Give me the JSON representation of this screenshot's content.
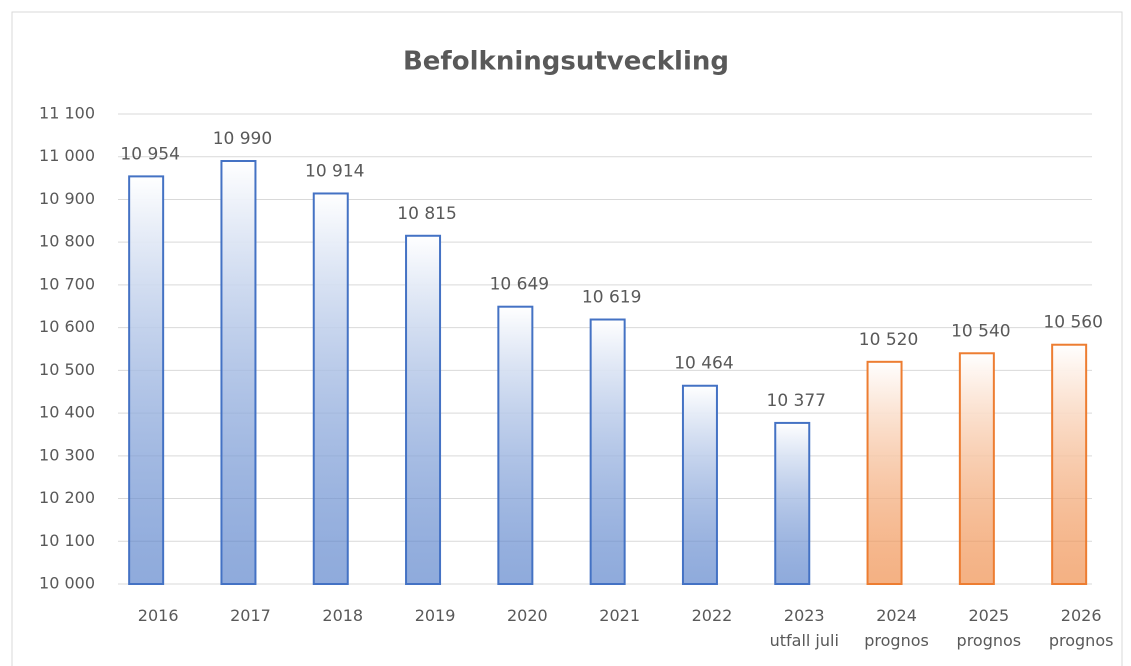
{
  "chart_data": {
    "type": "bar",
    "title": "Befolkningsutveckling",
    "categories": [
      "2016",
      "2017",
      "2018",
      "2019",
      "2020",
      "2021",
      "2022",
      "2023\nutfall juli",
      "2024\nprognos",
      "2025\nprognos",
      "2026\nprognos"
    ],
    "values": [
      10954,
      10990,
      10914,
      10815,
      10649,
      10619,
      10464,
      10377,
      10520,
      10540,
      10560
    ],
    "value_labels": [
      "10 954",
      "10 990",
      "10 914",
      "10 815",
      "10 649",
      "10 619",
      "10 464",
      "10 377",
      "10 520",
      "10 540",
      "10 560"
    ],
    "colors": [
      "#4472c4",
      "#4472c4",
      "#4472c4",
      "#4472c4",
      "#4472c4",
      "#4472c4",
      "#4472c4",
      "#4472c4",
      "#ed7d31",
      "#ed7d31",
      "#ed7d31"
    ],
    "ylim": [
      10000,
      11100
    ],
    "yticks": [
      {
        "value": 10000,
        "label": "10 000"
      },
      {
        "value": 10100,
        "label": "10 100"
      },
      {
        "value": 10200,
        "label": "10 200"
      },
      {
        "value": 10300,
        "label": "10 300"
      },
      {
        "value": 10400,
        "label": "10 400"
      },
      {
        "value": 10500,
        "label": "10 500"
      },
      {
        "value": 10600,
        "label": "10 600"
      },
      {
        "value": 10700,
        "label": "10 700"
      },
      {
        "value": 10800,
        "label": "10 800"
      },
      {
        "value": 10900,
        "label": "10 900"
      },
      {
        "value": 11000,
        "label": "11 000"
      },
      {
        "value": 11100,
        "label": "11 100"
      }
    ],
    "grid": true
  }
}
